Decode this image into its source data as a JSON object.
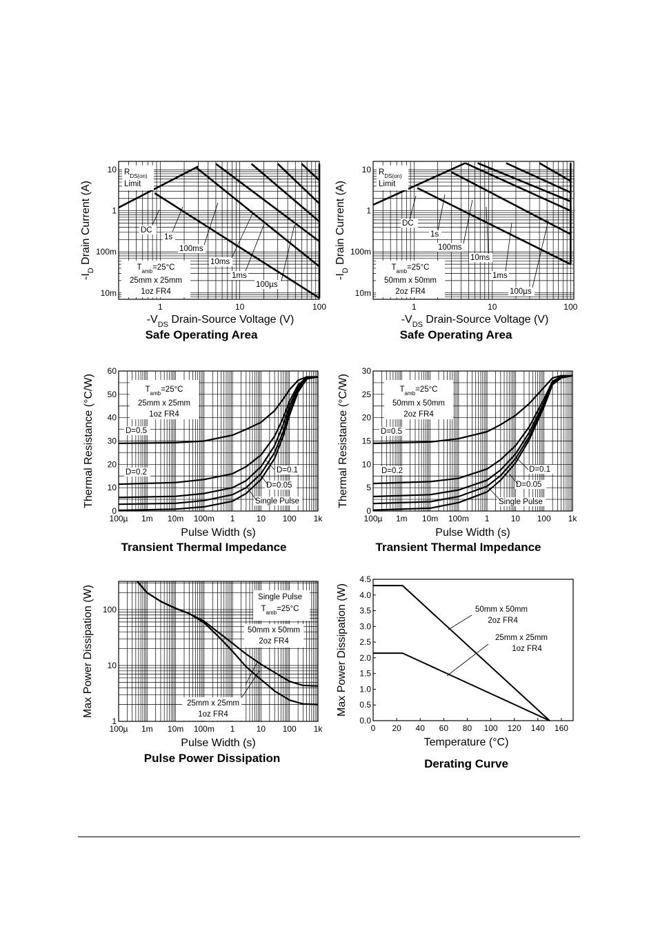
{
  "chart_data": [
    {
      "id": "soa1",
      "type": "line",
      "title": "Safe Operating Area",
      "xlabel": "-VDS  Drain-Source Voltage (V)",
      "ylabel": "-ID  Drain Current (A)",
      "xscale": "log",
      "yscale": "log",
      "xlim": [
        0.3,
        100
      ],
      "ylim": [
        0.007,
        16
      ],
      "xticks": [
        {
          "v": 1,
          "t": "1"
        },
        {
          "v": 10,
          "t": "10"
        },
        {
          "v": 100,
          "t": "100"
        }
      ],
      "yticks": [
        {
          "v": 0.01,
          "t": "10m"
        },
        {
          "v": 0.1,
          "t": "100m"
        },
        {
          "v": 1,
          "t": "1"
        },
        {
          "v": 10,
          "t": "10"
        }
      ],
      "grid": true,
      "series": [
        {
          "name": "RDS(on) Limit",
          "x": [
            0.3,
            3.0
          ],
          "y": [
            1.2,
            12
          ]
        },
        {
          "name": "DC",
          "x": [
            0.85,
            100
          ],
          "y": [
            2.7,
            0.0075
          ]
        },
        {
          "name": "1s",
          "x": [
            2.8,
            100
          ],
          "y": [
            11.5,
            0.044
          ]
        },
        {
          "name": "100ms",
          "x": [
            5.0,
            100
          ],
          "y": [
            14,
            0.18
          ]
        },
        {
          "name": "10ms",
          "x": [
            14,
            100
          ],
          "y": [
            14,
            0.55
          ]
        },
        {
          "name": "1ms",
          "x": [
            30,
            100
          ],
          "y": [
            14,
            1.5
          ]
        },
        {
          "name": "100µs",
          "x": [
            60,
            100
          ],
          "y": [
            14,
            5.5
          ]
        },
        {
          "name": "",
          "x": [
            100,
            100
          ],
          "y": [
            0.0075,
            14
          ]
        }
      ],
      "labels": {
        "rds": "R",
        "rds_sub": "DS(on)",
        "limit": "Limit",
        "dc": "DC",
        "s1": "1s",
        "ms100": "100ms",
        "ms10": "10ms",
        "ms1": "1ms",
        "us100": "100µs",
        "t": "T",
        "t_sub": "amb",
        "t_val": "=25°C",
        "board": "25mm x 25mm",
        "cu": "1oz FR4"
      }
    },
    {
      "id": "soa2",
      "type": "line",
      "title": "Safe Operating Area",
      "xlabel": "-VDS  Drain-Source Voltage (V)",
      "ylabel": "-ID  Drain Current (A)",
      "xscale": "log",
      "yscale": "log",
      "xlim": [
        0.3,
        110
      ],
      "ylim": [
        0.007,
        16
      ],
      "xticks": [
        {
          "v": 1,
          "t": "1"
        },
        {
          "v": 10,
          "t": "10"
        },
        {
          "v": 100,
          "t": "100"
        }
      ],
      "yticks": [
        {
          "v": 0.01,
          "t": "10m"
        },
        {
          "v": 0.1,
          "t": "100m"
        },
        {
          "v": 1,
          "t": "1"
        },
        {
          "v": 10,
          "t": "10"
        }
      ],
      "grid": true,
      "series": [
        {
          "name": "RDS(on) Limit",
          "x": [
            0.3,
            4.5
          ],
          "y": [
            1.4,
            14.5
          ]
        },
        {
          "name": "DC",
          "x": [
            1.1,
            100
          ],
          "y": [
            3.6,
            0.05
          ]
        },
        {
          "name": "1s",
          "x": [
            3.0,
            100
          ],
          "y": [
            8.8,
            0.27
          ]
        },
        {
          "name": "100ms",
          "x": [
            4.5,
            100
          ],
          "y": [
            14.5,
            1.0
          ]
        },
        {
          "name": "10ms",
          "x": [
            6.5,
            100
          ],
          "y": [
            14.5,
            1.7
          ]
        },
        {
          "name": "1ms",
          "x": [
            15,
            100
          ],
          "y": [
            14.5,
            2.8
          ]
        },
        {
          "name": "100µs",
          "x": [
            40,
            100
          ],
          "y": [
            14.5,
            5.3
          ]
        },
        {
          "name": "",
          "x": [
            100,
            100
          ],
          "y": [
            0.05,
            14.5
          ]
        }
      ],
      "labels": {
        "rds": "R",
        "rds_sub": "DS(on)",
        "limit": "Limit",
        "dc": "DC",
        "s1": "1s",
        "ms100": "100ms",
        "ms10": "10ms",
        "ms1": "1ms",
        "us100": "100µs",
        "t": "T",
        "t_sub": "amb",
        "t_val": "=25°C",
        "board": "50mm x 50mm",
        "cu": "2oz FR4"
      }
    },
    {
      "id": "tti1",
      "type": "line",
      "title": "Transient Thermal Impedance",
      "xlabel": "Pulse Width (s)",
      "ylabel": "Thermal Resistance (°C/W)",
      "xscale": "log",
      "yscale": "linear",
      "xlim": [
        0.0001,
        1000
      ],
      "ylim": [
        0,
        60
      ],
      "xticks": [
        {
          "v": 0.0001,
          "t": "100µ"
        },
        {
          "v": 0.001,
          "t": "1m"
        },
        {
          "v": 0.01,
          "t": "10m"
        },
        {
          "v": 0.1,
          "t": "100m"
        },
        {
          "v": 1,
          "t": "1"
        },
        {
          "v": 10,
          "t": "10"
        },
        {
          "v": 100,
          "t": "100"
        },
        {
          "v": 1000,
          "t": "1k"
        }
      ],
      "yticks": [
        {
          "v": 0,
          "t": "0"
        },
        {
          "v": 10,
          "t": "10"
        },
        {
          "v": 20,
          "t": "20"
        },
        {
          "v": 30,
          "t": "30"
        },
        {
          "v": 40,
          "t": "40"
        },
        {
          "v": 50,
          "t": "50"
        },
        {
          "v": 60,
          "t": "60"
        }
      ],
      "grid": true,
      "series": [
        {
          "name": "D=0.5",
          "x": [
            0.0001,
            0.01,
            0.1,
            1,
            3,
            10,
            30,
            60,
            100,
            200,
            400,
            1000
          ],
          "y": [
            29,
            29.3,
            30,
            32.5,
            35,
            38,
            43,
            48,
            52,
            56,
            57.5,
            57.5
          ]
        },
        {
          "name": "D=0.2",
          "x": [
            0.0001,
            0.01,
            0.1,
            1,
            3,
            10,
            30,
            60,
            100,
            200,
            400,
            1000
          ],
          "y": [
            11.5,
            12.2,
            13.5,
            16,
            19,
            24,
            32,
            40,
            47,
            54,
            57.2,
            57.5
          ]
        },
        {
          "name": "D=0.1",
          "x": [
            0.0001,
            0.01,
            0.1,
            1,
            3,
            10,
            30,
            60,
            100,
            200,
            400,
            1000
          ],
          "y": [
            5.8,
            6.3,
            7.5,
            10,
            13,
            19,
            28,
            37,
            45,
            53,
            57,
            57.5
          ]
        },
        {
          "name": "D=0.05",
          "x": [
            0.0001,
            0.01,
            0.1,
            1,
            3,
            10,
            30,
            60,
            100,
            200,
            400,
            1000
          ],
          "y": [
            2.9,
            3.3,
            4.5,
            7,
            10,
            16,
            25,
            34,
            43,
            52,
            56.8,
            57.5
          ]
        },
        {
          "name": "Single Pulse",
          "x": [
            0.0001,
            0.01,
            0.1,
            1,
            3,
            10,
            30,
            60,
            100,
            200,
            400,
            1000
          ],
          "y": [
            0.3,
            0.8,
            1.8,
            4.2,
            7.5,
            13.5,
            22.5,
            32,
            41,
            51,
            56.6,
            57.5
          ]
        }
      ],
      "labels": {
        "t": "T",
        "t_sub": "amb",
        "t_val": "=25°C",
        "board": "25mm x 25mm",
        "cu": "1oz FR4",
        "d05": "D=0.5",
        "d02": "D=0.2",
        "d01": "D=0.1",
        "d005": "D=0.05",
        "sp": "Single Pulse"
      }
    },
    {
      "id": "tti2",
      "type": "line",
      "title": "Transient Thermal Impedance",
      "xlabel": "Pulse Width (s)",
      "ylabel": "Thermal Resistance (°C/W)",
      "xscale": "log",
      "yscale": "linear",
      "xlim": [
        0.0001,
        1000
      ],
      "ylim": [
        0,
        30
      ],
      "xticks": [
        {
          "v": 0.0001,
          "t": "100µ"
        },
        {
          "v": 0.001,
          "t": "1m"
        },
        {
          "v": 0.01,
          "t": "10m"
        },
        {
          "v": 0.1,
          "t": "100m"
        },
        {
          "v": 1,
          "t": "1"
        },
        {
          "v": 10,
          "t": "10"
        },
        {
          "v": 100,
          "t": "100"
        },
        {
          "v": 1000,
          "t": "1k"
        }
      ],
      "yticks": [
        {
          "v": 0,
          "t": "0"
        },
        {
          "v": 5,
          "t": "5"
        },
        {
          "v": 10,
          "t": "10"
        },
        {
          "v": 15,
          "t": "15"
        },
        {
          "v": 20,
          "t": "20"
        },
        {
          "v": 25,
          "t": "25"
        },
        {
          "v": 30,
          "t": "30"
        }
      ],
      "grid": true,
      "series": [
        {
          "name": "D=0.5",
          "x": [
            0.0001,
            0.01,
            0.1,
            1,
            3,
            10,
            30,
            100,
            200,
            400,
            1000
          ],
          "y": [
            14.5,
            14.8,
            15.5,
            17,
            18.5,
            20.5,
            23,
            26.5,
            28.5,
            29,
            29
          ]
        },
        {
          "name": "D=0.2",
          "x": [
            0.0001,
            0.01,
            0.1,
            1,
            3,
            10,
            30,
            100,
            200,
            400,
            1000
          ],
          "y": [
            5.9,
            6.3,
            7,
            9,
            11,
            14,
            18,
            24,
            27.8,
            28.8,
            29
          ]
        },
        {
          "name": "D=0.1",
          "x": [
            0.0001,
            0.01,
            0.1,
            1,
            3,
            10,
            30,
            100,
            200,
            400,
            1000
          ],
          "y": [
            3.1,
            3.5,
            4.5,
            6.6,
            8.8,
            12.2,
            16.8,
            23.2,
            27.5,
            28.7,
            29
          ]
        },
        {
          "name": "D=0.05",
          "x": [
            0.0001,
            0.01,
            0.1,
            1,
            3,
            10,
            30,
            100,
            200,
            400,
            1000
          ],
          "y": [
            1.6,
            2.0,
            3.1,
            5.3,
            7.6,
            11.2,
            15.9,
            22.7,
            27.3,
            28.6,
            29
          ]
        },
        {
          "name": "Single Pulse",
          "x": [
            0.0001,
            0.01,
            0.1,
            1,
            3,
            10,
            30,
            100,
            200,
            400,
            1000
          ],
          "y": [
            0.2,
            0.6,
            1.8,
            4.1,
            6.6,
            10.3,
            15.2,
            22.3,
            27.1,
            28.5,
            29
          ]
        }
      ],
      "labels": {
        "t": "T",
        "t_sub": "amb",
        "t_val": "=25°C",
        "board": "50mm x 50mm",
        "cu": "2oz FR4",
        "d05": "D=0.5",
        "d02": "D=0.2",
        "d01": "D=0.1",
        "d005": "D=0.05",
        "sp": "Single Pulse"
      }
    },
    {
      "id": "ppd",
      "type": "line",
      "title": "Pulse Power Dissipation",
      "xlabel": "Pulse Width (s)",
      "ylabel": "Max Power Dissipation (W)",
      "xscale": "log",
      "yscale": "log",
      "xlim": [
        0.0001,
        1000
      ],
      "ylim": [
        1,
        320
      ],
      "xticks": [
        {
          "v": 0.0001,
          "t": "100µ"
        },
        {
          "v": 0.001,
          "t": "1m"
        },
        {
          "v": 0.01,
          "t": "10m"
        },
        {
          "v": 0.1,
          "t": "100m"
        },
        {
          "v": 1,
          "t": "1"
        },
        {
          "v": 10,
          "t": "10"
        },
        {
          "v": 100,
          "t": "100"
        },
        {
          "v": 1000,
          "t": "1k"
        }
      ],
      "yticks": [
        {
          "v": 1,
          "t": "1"
        },
        {
          "v": 10,
          "t": "10"
        },
        {
          "v": 100,
          "t": "100"
        }
      ],
      "grid": true,
      "series": [
        {
          "name": "50mm x 50mm 2oz FR4",
          "x": [
            0.00045,
            0.001,
            0.003,
            0.01,
            0.03,
            0.1,
            0.3,
            1,
            3,
            10,
            30,
            100,
            300,
            1000
          ],
          "y": [
            320,
            200,
            140,
            105,
            85,
            62,
            40,
            25,
            16,
            10.5,
            7.5,
            5.2,
            4.4,
            4.3
          ]
        },
        {
          "name": "25mm x 25mm 1oz FR4",
          "x": [
            0.00045,
            0.001,
            0.003,
            0.01,
            0.03,
            0.1,
            0.3,
            1,
            3,
            10,
            30,
            100,
            300,
            1000
          ],
          "y": [
            320,
            200,
            140,
            105,
            85,
            58,
            34,
            18,
            9.5,
            5.6,
            3.5,
            2.4,
            2.05,
            2.0
          ]
        }
      ],
      "labels": {
        "sp": "Single Pulse",
        "t": "T",
        "t_sub": "amb",
        "t_val": "=25°C",
        "b1": "50mm x 50mm",
        "c1": "2oz FR4",
        "b2": "25mm x 25mm",
        "c2": "1oz FR4"
      }
    },
    {
      "id": "derate",
      "type": "line",
      "title": "Derating Curve",
      "xlabel": "Temperature (°C)",
      "ylabel": "Max Power Dissipation (W)",
      "xscale": "linear",
      "yscale": "linear",
      "xlim": [
        0,
        170
      ],
      "ylim": [
        0,
        4.5
      ],
      "xticks": [
        {
          "v": 0,
          "t": "0"
        },
        {
          "v": 20,
          "t": "20"
        },
        {
          "v": 40,
          "t": "40"
        },
        {
          "v": 60,
          "t": "60"
        },
        {
          "v": 80,
          "t": "80"
        },
        {
          "v": 100,
          "t": "100"
        },
        {
          "v": 120,
          "t": "120"
        },
        {
          "v": 140,
          "t": "140"
        },
        {
          "v": 160,
          "t": "160"
        }
      ],
      "yticks": [
        {
          "v": 0,
          "t": "0.0"
        },
        {
          "v": 0.5,
          "t": "0.5"
        },
        {
          "v": 1,
          "t": "1.0"
        },
        {
          "v": 1.5,
          "t": "1.5"
        },
        {
          "v": 2,
          "t": "2.0"
        },
        {
          "v": 2.5,
          "t": "2.5"
        },
        {
          "v": 3,
          "t": "3.0"
        },
        {
          "v": 3.5,
          "t": "3.5"
        },
        {
          "v": 4,
          "t": "4.0"
        },
        {
          "v": 4.5,
          "t": "4.5"
        }
      ],
      "grid": false,
      "series": [
        {
          "name": "50mm x 50mm 2oz FR4",
          "x": [
            0,
            25,
            150
          ],
          "y": [
            4.3,
            4.3,
            0
          ]
        },
        {
          "name": "25mm x 25mm 1oz FR4",
          "x": [
            0,
            25,
            150
          ],
          "y": [
            2.15,
            2.15,
            0
          ]
        }
      ],
      "labels": {
        "b1": "50mm x 50mm",
        "c1": "2oz FR4",
        "b2": "25mm x 25mm",
        "c2": "1oz FR4"
      }
    }
  ]
}
